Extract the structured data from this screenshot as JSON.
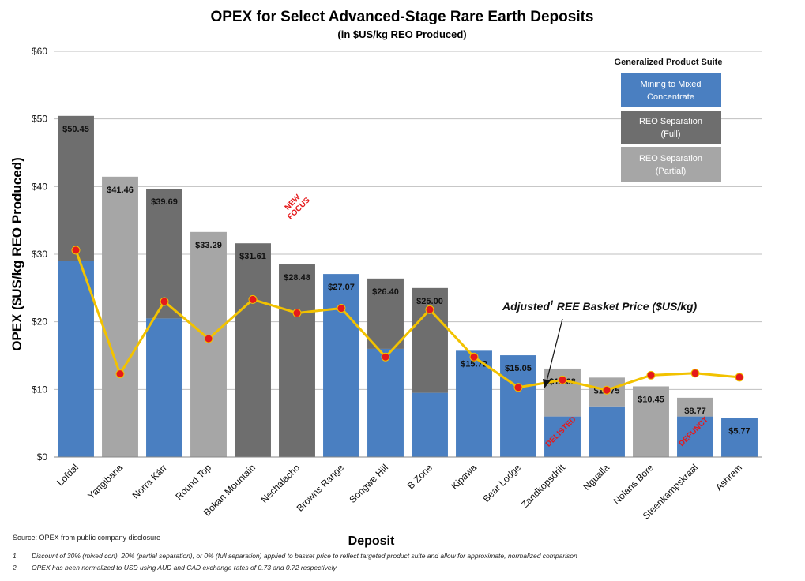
{
  "chart_data": {
    "type": "bar",
    "title": "OPEX for Select Advanced-Stage Rare Earth Deposits",
    "subtitle": "(in $US/kg REO Produced)",
    "xlabel": "Deposit",
    "ylabel": "OPEX ($US/kg REO Produced)",
    "ylim": [
      0,
      60
    ],
    "y_ticks": [
      "$0",
      "$10",
      "$20",
      "$30",
      "$40",
      "$50",
      "$60"
    ],
    "grid": true,
    "categories": [
      "Lofdal",
      "Yangibana",
      "Norra Kärr",
      "Round Top",
      "Bokan Mountain",
      "Nechalacho",
      "Browns Range",
      "Songwe Hill",
      "B Zone",
      "Kipawa",
      "Bear Lodge",
      "Zandkopsdrift",
      "Ngualla",
      "Nolans Bore",
      "Steenkampskraal",
      "Ashram"
    ],
    "series": [
      {
        "name": "Mining to Mixed Concentrate",
        "color": "#4a7fc1",
        "values": [
          29,
          0,
          20.5,
          0,
          0,
          0,
          27.07,
          16,
          9.5,
          15.72,
          15.05,
          6,
          7.5,
          0,
          6,
          5.77
        ]
      },
      {
        "name": "REO Separation (Full)",
        "color": "#6e6e6e",
        "values": [
          21.45,
          0,
          19.19,
          0,
          31.61,
          28.48,
          0,
          10.4,
          15.5,
          0,
          0,
          0,
          0,
          0,
          0,
          0
        ]
      },
      {
        "name": "REO Separation (Partial)",
        "color": "#a6a6a6",
        "values": [
          0,
          41.46,
          0,
          33.29,
          0,
          0,
          0,
          0,
          0,
          0,
          0,
          7.08,
          4.25,
          10.45,
          2.77,
          0
        ]
      }
    ],
    "totals": [
      50.45,
      41.46,
      39.69,
      33.29,
      31.61,
      28.48,
      27.07,
      26.4,
      25.0,
      15.72,
      15.05,
      13.08,
      11.75,
      10.45,
      8.77,
      5.77
    ],
    "total_labels": [
      "$50.45",
      "$41.46",
      "$39.69",
      "$33.29",
      "$31.61",
      "$28.48",
      "$27.07",
      "$26.40",
      "$25.00",
      "$15.72",
      "$15.05",
      "$13.08",
      "$11.75",
      "$10.45",
      "$8.77",
      "$5.77"
    ],
    "line": {
      "name": "Adjusted REE Basket Price ($US/kg)",
      "values": [
        30.6,
        12.3,
        23.0,
        17.5,
        23.3,
        21.3,
        22.0,
        14.8,
        21.8,
        14.8,
        10.3,
        11.4,
        9.9,
        12.1,
        12.4,
        11.8
      ]
    },
    "annotations": [
      {
        "text": "NEW FOCUS",
        "category": "Nechalacho"
      },
      {
        "text": "DELISTED",
        "category": "Zandkopsdrift"
      },
      {
        "text": "DEFUNCT",
        "category": "Steenkampskraal"
      }
    ],
    "callout": {
      "text": "Adjusted",
      "superscript": "1",
      "rest": " REE Basket Price ($US/kg)"
    },
    "legend": {
      "title": "Generalized Product Suite",
      "items": [
        {
          "line1": "Mining to Mixed",
          "line2": "Concentrate",
          "color": "#4a7fc1"
        },
        {
          "line1": "REO Separation",
          "line2": "(Full)",
          "color": "#6e6e6e"
        },
        {
          "line1": "REO Separation",
          "line2": "(Partial)",
          "color": "#a6a6a6"
        }
      ],
      "position": "top-right"
    }
  },
  "source": "Source: OPEX from public company disclosure",
  "footnotes": [
    {
      "num": "1.",
      "text": "Discount of 30% (mixed con), 20% (partial separation), or 0% (full separation) applied to basket price to reflect targeted product suite and allow for approximate, normalized comparison"
    },
    {
      "num": "2.",
      "text": "OPEX has been normalized to USD using AUD and CAD exchange rates of 0.73 and 0.72 respectively"
    }
  ]
}
